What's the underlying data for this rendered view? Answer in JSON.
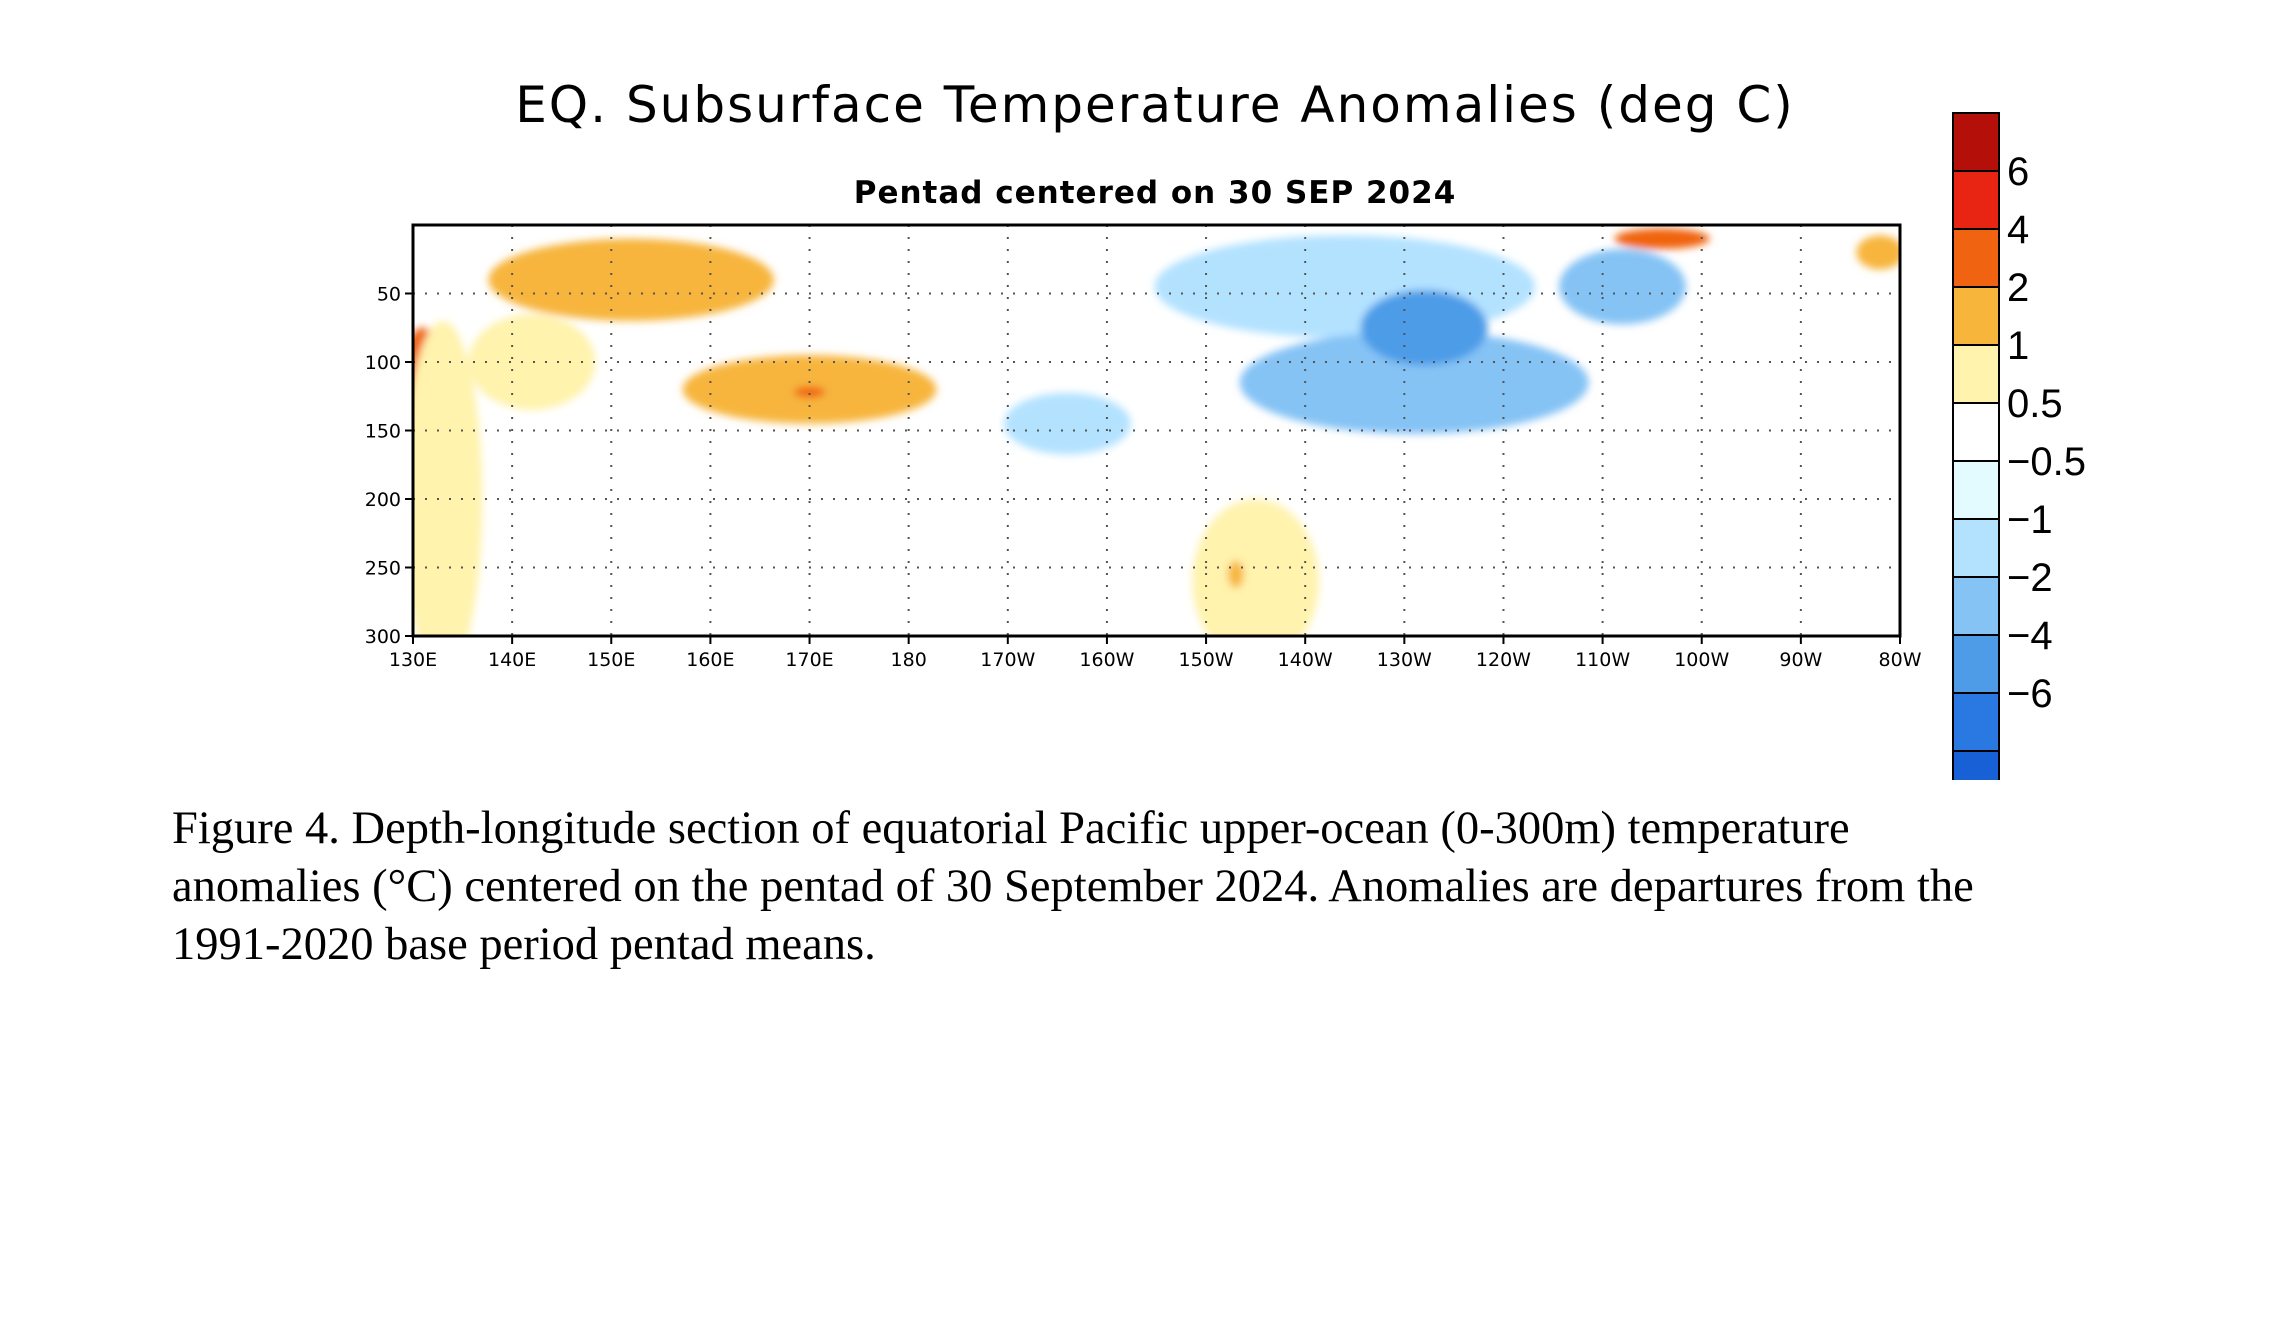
{
  "chart_data": {
    "type": "heatmap",
    "title": "EQ. Subsurface Temperature Anomalies (deg C)",
    "subtitle": "Pentad centered on 30 SEP 2024",
    "xlabel": "",
    "ylabel": "",
    "x_ticks": [
      "130E",
      "140E",
      "150E",
      "160E",
      "170E",
      "180",
      "170W",
      "160W",
      "150W",
      "140W",
      "130W",
      "120W",
      "110W",
      "100W",
      "90W",
      "80W"
    ],
    "x_range": [
      "130E",
      "80W"
    ],
    "y_ticks": [
      "50",
      "100",
      "150",
      "200",
      "250",
      "300"
    ],
    "y_range": [
      0,
      300
    ],
    "y_inverted": true,
    "grid": "dotted",
    "colorbar": {
      "placement": "right",
      "labels": [
        "6",
        "4",
        "2",
        "1",
        "0.5",
        "−0.5",
        "−1",
        "−2",
        "−4",
        "−6"
      ],
      "colors": [
        "#b50f0a",
        "#e82513",
        "#f06310",
        "#f7b53c",
        "#fff3ad",
        "#ffffff",
        "#e3fbff",
        "#b3e2ff",
        "#85c3f5",
        "#4e9ce8",
        "#2a78e2",
        "#1860d6"
      ]
    },
    "anomaly_regions": [
      {
        "lon": 131,
        "depth": 120,
        "lon_width": 3,
        "depth_height": 90,
        "value": 2.5
      },
      {
        "lon": 133,
        "depth": 200,
        "lon_width": 5,
        "depth_height": 260,
        "value": 0.8
      },
      {
        "lon": 142,
        "depth": 100,
        "lon_width": 8,
        "depth_height": 70,
        "value": 0.8
      },
      {
        "lon": 152,
        "depth": 40,
        "lon_width": 18,
        "depth_height": 60,
        "value": 1.3
      },
      {
        "lon": 170,
        "depth": 120,
        "lon_width": 16,
        "depth_height": 50,
        "value": 1.3
      },
      {
        "lon": 170,
        "depth": 122,
        "lon_width": 2,
        "depth_height": 8,
        "value": 2.5
      },
      {
        "lon": 215,
        "depth": 260,
        "lon_width": 8,
        "depth_height": 120,
        "value": 0.8
      },
      {
        "lon": 213,
        "depth": 255,
        "lon_width": 1,
        "depth_height": 20,
        "value": 1.5
      },
      {
        "lon": 256,
        "depth": 10,
        "lon_width": 6,
        "depth_height": 15,
        "value": 2.5
      },
      {
        "lon": 278,
        "depth": 20,
        "lon_width": 3,
        "depth_height": 25,
        "value": 1.3
      },
      {
        "lon": 196,
        "depth": 145,
        "lon_width": 8,
        "depth_height": 45,
        "value": -1.5
      },
      {
        "lon": 224,
        "depth": 45,
        "lon_width": 24,
        "depth_height": 75,
        "value": -1.5
      },
      {
        "lon": 231,
        "depth": 115,
        "lon_width": 22,
        "depth_height": 75,
        "value": -2.5
      },
      {
        "lon": 232,
        "depth": 75,
        "lon_width": 8,
        "depth_height": 55,
        "value": -4.5
      },
      {
        "lon": 252,
        "depth": 45,
        "lon_width": 8,
        "depth_height": 55,
        "value": -2.5
      }
    ]
  }
}
